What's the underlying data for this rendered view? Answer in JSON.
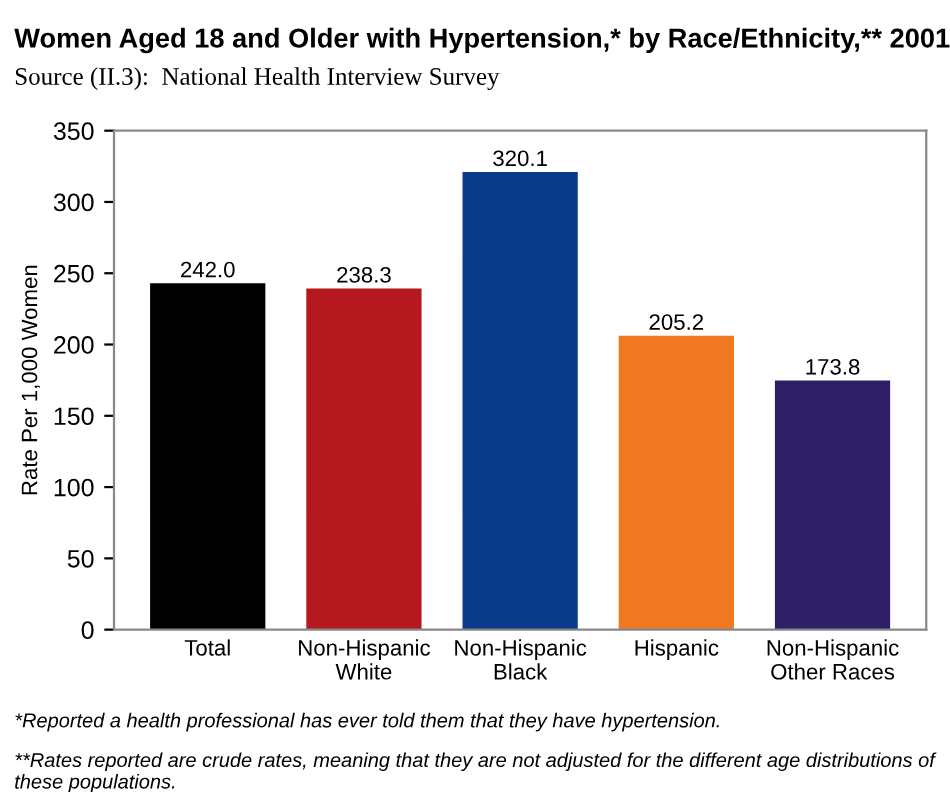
{
  "chart_data": {
    "type": "bar",
    "title": "Women Aged 18 and Older with Hypertension,* by Race/Ethnicity,** 2001",
    "subtitle": "Source (II.3):  National Health Interview Survey",
    "ylabel": "Rate Per 1,000 Women",
    "categories": [
      "Total",
      "Non-Hispanic\nWhite",
      "Non-Hispanic\nBlack",
      "Hispanic",
      "Non-Hispanic\nOther Races"
    ],
    "values": [
      242.0,
      238.3,
      320.1,
      205.2,
      173.8
    ],
    "colors": [
      "#000000",
      "#b5191f",
      "#0a3a8a",
      "#f07820",
      "#2e1f66"
    ],
    "value_labels": [
      "242.0",
      "238.3",
      "320.1",
      "205.2",
      "173.8"
    ],
    "ylim": [
      0,
      350
    ],
    "yticks": [
      0,
      50,
      100,
      150,
      200,
      250,
      300,
      350
    ],
    "grid": false,
    "legend": false,
    "annotations": [
      "*Reported a health professional has ever told them that they have hypertension.",
      "**Rates reported are crude rates, meaning that they are not adjusted for the different age distributions of these populations."
    ]
  }
}
